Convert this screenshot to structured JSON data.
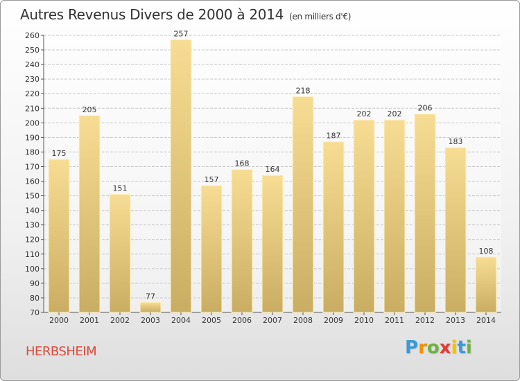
{
  "title": "Autres Revenus Divers de 2000 à 2014",
  "subtitle": "(en milliers d'€)",
  "commune": "HERBSHEIM",
  "logo": {
    "letters": [
      "P",
      "r",
      "o",
      "x",
      "i",
      "t",
      "i"
    ],
    "colors": [
      "#3a9ad9",
      "#f29100",
      "#6cb33f",
      "#e53935",
      "#f2c200",
      "#3a9ad9",
      "#6cb33f"
    ]
  },
  "colors": {
    "bar_light": "#f7dd93",
    "bar_dark": "#c9ad63",
    "commune": "#d94a3a"
  },
  "chart_data": {
    "type": "bar",
    "title": "Autres Revenus Divers de 2000 à 2014",
    "subtitle": "(en milliers d'€)",
    "categories": [
      "2000",
      "2001",
      "2002",
      "2003",
      "2004",
      "2005",
      "2006",
      "2007",
      "2008",
      "2009",
      "2010",
      "2011",
      "2012",
      "2013",
      "2014"
    ],
    "values": [
      175,
      205,
      151,
      77,
      257,
      157,
      168,
      164,
      218,
      187,
      202,
      202,
      206,
      183,
      108
    ],
    "ylim": [
      70,
      260
    ],
    "yticks": [
      70,
      80,
      90,
      100,
      110,
      120,
      130,
      140,
      150,
      160,
      170,
      180,
      190,
      200,
      210,
      220,
      230,
      240,
      250,
      260
    ],
    "grid": true,
    "xlabel": "",
    "ylabel": ""
  }
}
